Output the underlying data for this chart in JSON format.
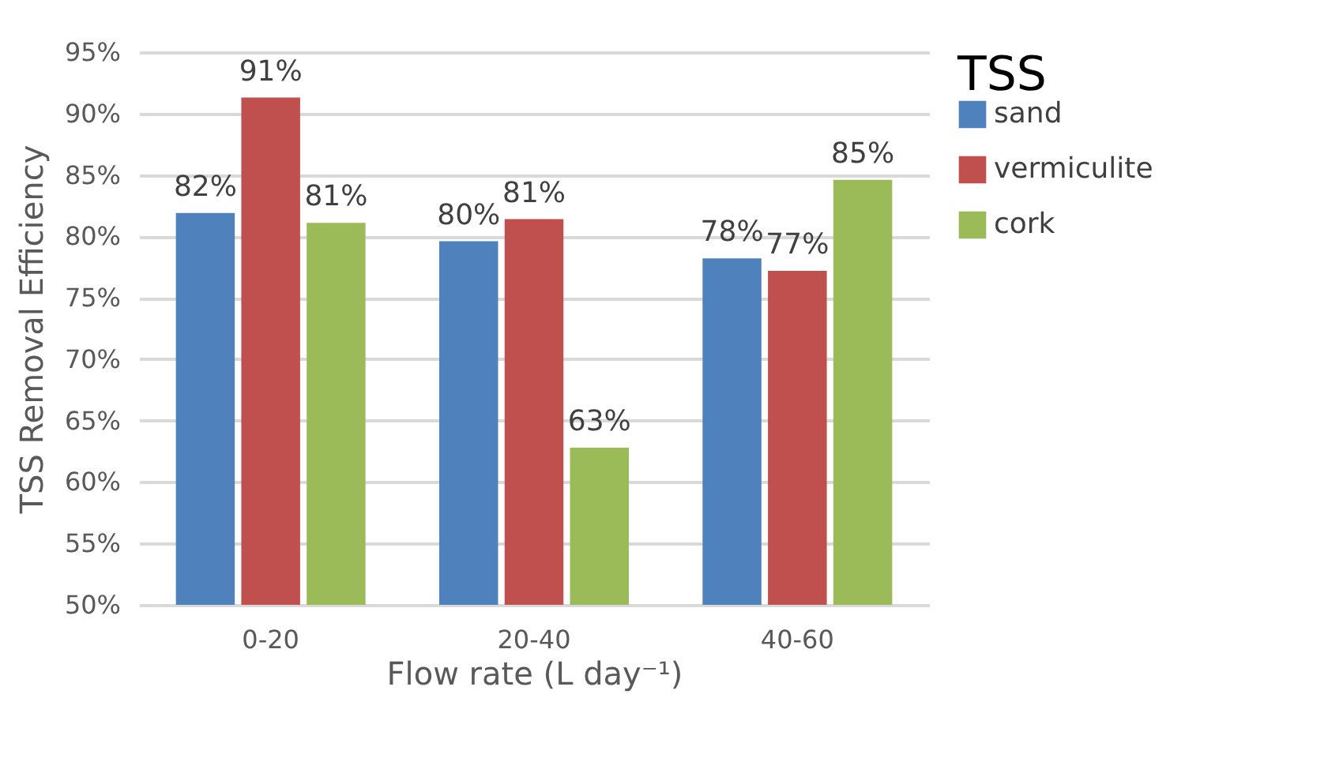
{
  "chart_data": {
    "type": "bar",
    "xlabel": "Flow rate (L day⁻¹)",
    "ylabel": "TSS Removal Efficiency",
    "legend_title": "TSS",
    "legend": "right",
    "grid": "y",
    "categories": [
      "0-20",
      "20-40",
      "40-60"
    ],
    "series": [
      {
        "name": "sand",
        "color": "#4f81bd",
        "values": [
          81.9,
          79.6,
          78.2
        ],
        "value_labels": [
          "82%",
          "80%",
          "78%"
        ]
      },
      {
        "name": "vermiculite",
        "color": "#c0504d",
        "values": [
          91.3,
          81.4,
          77.2
        ],
        "value_labels": [
          "91%",
          "81%",
          "77%"
        ]
      },
      {
        "name": "cork",
        "color": "#9bbb59",
        "values": [
          81.1,
          62.8,
          84.6
        ],
        "value_labels": [
          "81%",
          "63%",
          "85%"
        ]
      }
    ],
    "ylim": [
      50,
      95
    ],
    "yticks": [
      {
        "value": 50,
        "label": "50%"
      },
      {
        "value": 55,
        "label": "55%"
      },
      {
        "value": 60,
        "label": "60%"
      },
      {
        "value": 65,
        "label": "65%"
      },
      {
        "value": 70,
        "label": "70%"
      },
      {
        "value": 75,
        "label": "75%"
      },
      {
        "value": 80,
        "label": "80%"
      },
      {
        "value": 85,
        "label": "85%"
      },
      {
        "value": 90,
        "label": "90%"
      },
      {
        "value": 95,
        "label": "95%"
      }
    ]
  }
}
